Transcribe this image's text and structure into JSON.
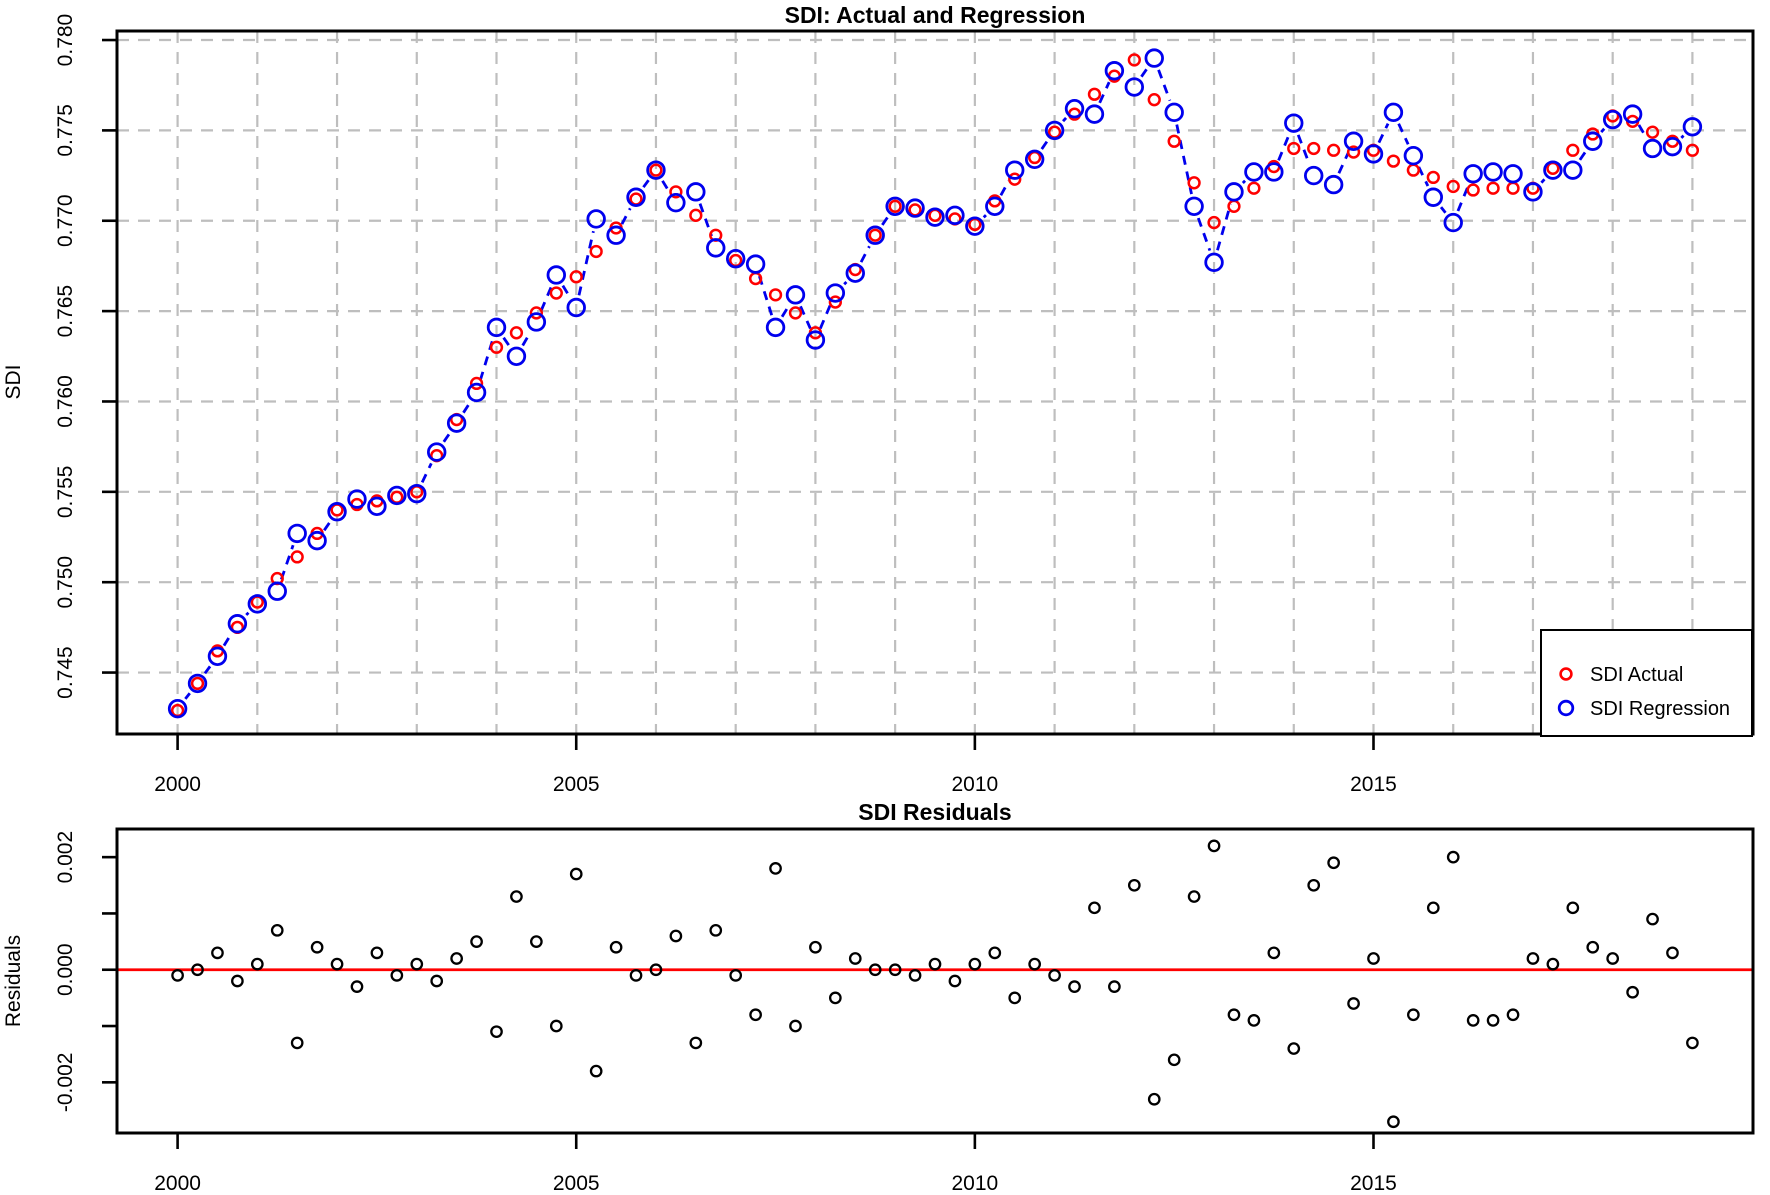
{
  "colors": {
    "actual": "#FF0000",
    "regression": "#0000EE",
    "residual_points": "#000000",
    "zero_line": "#FF0000",
    "grid": "#BEBEBE",
    "frame": "#000000",
    "background": "#FFFFFF"
  },
  "top_chart": {
    "title": "SDI: Actual and Regression",
    "ylabel": "SDI",
    "legend": {
      "items": [
        {
          "label": "SDI Actual",
          "color": "#FF0000"
        },
        {
          "label": "SDI Regression",
          "color": "#0000EE"
        }
      ]
    }
  },
  "bottom_chart": {
    "title": "SDI Residuals",
    "ylabel": "Residuals"
  },
  "chart_data": [
    {
      "type": "line",
      "title": "SDI: Actual and Regression",
      "xlabel": "",
      "ylabel": "SDI",
      "xlim": [
        1999.24,
        2019.76
      ],
      "ylim": [
        0.7416,
        0.7805
      ],
      "x_ticks": [
        2000,
        2005,
        2010,
        2015
      ],
      "x_tick_labels": [
        "2000",
        "2005",
        "2010",
        "2015"
      ],
      "y_ticks": [
        0.745,
        0.75,
        0.755,
        0.76,
        0.765,
        0.77,
        0.775,
        0.78
      ],
      "y_tick_labels": [
        "0.745",
        "0.750",
        "0.755",
        "0.760",
        "0.765",
        "0.770",
        "0.775",
        "0.780"
      ],
      "grid": true,
      "grid_x_years": [
        2000,
        2001,
        2002,
        2003,
        2004,
        2005,
        2006,
        2007,
        2008,
        2009,
        2010,
        2011,
        2012,
        2013,
        2014,
        2015,
        2016,
        2017,
        2018,
        2019
      ],
      "legend_position": "bottom-right",
      "x": [
        2000.0,
        2000.25,
        2000.5,
        2000.75,
        2001.0,
        2001.25,
        2001.5,
        2001.75,
        2002.0,
        2002.25,
        2002.5,
        2002.75,
        2003.0,
        2003.25,
        2003.5,
        2003.75,
        2004.0,
        2004.25,
        2004.5,
        2004.75,
        2005.0,
        2005.25,
        2005.5,
        2005.75,
        2006.0,
        2006.25,
        2006.5,
        2006.75,
        2007.0,
        2007.25,
        2007.5,
        2007.75,
        2008.0,
        2008.25,
        2008.5,
        2008.75,
        2009.0,
        2009.25,
        2009.5,
        2009.75,
        2010.0,
        2010.25,
        2010.5,
        2010.75,
        2011.0,
        2011.25,
        2011.5,
        2011.75,
        2012.0,
        2012.25,
        2012.5,
        2012.75,
        2013.0,
        2013.25,
        2013.5,
        2013.75,
        2014.0,
        2014.25,
        2014.5,
        2014.75,
        2015.0,
        2015.25,
        2015.5,
        2015.75,
        2016.0,
        2016.25,
        2016.5,
        2016.75,
        2017.0,
        2017.25,
        2017.5,
        2017.75,
        2018.0,
        2018.25,
        2018.5,
        2018.75,
        2019.0
      ],
      "series": [
        {
          "name": "SDI Actual",
          "marker": "open-circle",
          "line": "none",
          "values": [
            0.7429,
            0.7444,
            0.7462,
            0.7475,
            0.7489,
            0.7502,
            0.7514,
            0.7527,
            0.754,
            0.7543,
            0.7545,
            0.7547,
            0.755,
            0.757,
            0.759,
            0.761,
            0.763,
            0.7638,
            0.7649,
            0.766,
            0.7669,
            0.7683,
            0.7696,
            0.7712,
            0.7728,
            0.7716,
            0.7703,
            0.7692,
            0.7678,
            0.7668,
            0.7659,
            0.7649,
            0.7638,
            0.7655,
            0.7673,
            0.7692,
            0.7708,
            0.7706,
            0.7703,
            0.7701,
            0.7698,
            0.7711,
            0.7723,
            0.7735,
            0.7749,
            0.7759,
            0.777,
            0.778,
            0.7789,
            0.7767,
            0.7744,
            0.7721,
            0.7699,
            0.7708,
            0.7718,
            0.773,
            0.774,
            0.774,
            0.7739,
            0.7738,
            0.7739,
            0.7733,
            0.7728,
            0.7724,
            0.7719,
            0.7717,
            0.7718,
            0.7718,
            0.7718,
            0.7729,
            0.7739,
            0.7748,
            0.7758,
            0.7755,
            0.7749,
            0.7744,
            0.7739
          ]
        },
        {
          "name": "SDI Regression",
          "marker": "open-circle",
          "line": "dashed",
          "values": [
            0.743,
            0.7444,
            0.7459,
            0.7477,
            0.7488,
            0.7495,
            0.7527,
            0.7523,
            0.7539,
            0.7546,
            0.7542,
            0.7548,
            0.7549,
            0.7572,
            0.7588,
            0.7605,
            0.7641,
            0.7625,
            0.7644,
            0.767,
            0.7652,
            0.7701,
            0.7692,
            0.7713,
            0.7728,
            0.771,
            0.7716,
            0.7685,
            0.7679,
            0.7676,
            0.7641,
            0.7659,
            0.7634,
            0.766,
            0.7671,
            0.7692,
            0.7708,
            0.7707,
            0.7702,
            0.7703,
            0.7697,
            0.7708,
            0.7728,
            0.7734,
            0.775,
            0.7762,
            0.7759,
            0.7783,
            0.7774,
            0.779,
            0.776,
            0.7708,
            0.7677,
            0.7716,
            0.7727,
            0.7727,
            0.7754,
            0.7725,
            0.772,
            0.7744,
            0.7737,
            0.776,
            0.7736,
            0.7713,
            0.7699,
            0.7726,
            0.7727,
            0.7726,
            0.7716,
            0.7728,
            0.7728,
            0.7744,
            0.7756,
            0.7759,
            0.774,
            0.7741,
            0.7752
          ]
        }
      ]
    },
    {
      "type": "scatter",
      "title": "SDI Residuals",
      "xlabel": "",
      "ylabel": "Residuals",
      "xlim": [
        1999.24,
        2019.76
      ],
      "ylim": [
        -0.0029,
        0.0025
      ],
      "x_ticks": [
        2000,
        2005,
        2010,
        2015
      ],
      "x_tick_labels": [
        "2000",
        "2005",
        "2010",
        "2015"
      ],
      "y_ticks": [
        -0.002,
        -0.001,
        0.0,
        0.001,
        0.002
      ],
      "y_tick_labels": [
        "-0.002",
        "",
        "0.000",
        "",
        "0.002"
      ],
      "grid": false,
      "zero_line": 0,
      "x": [
        2000.0,
        2000.25,
        2000.5,
        2000.75,
        2001.0,
        2001.25,
        2001.5,
        2001.75,
        2002.0,
        2002.25,
        2002.5,
        2002.75,
        2003.0,
        2003.25,
        2003.5,
        2003.75,
        2004.0,
        2004.25,
        2004.5,
        2004.75,
        2005.0,
        2005.25,
        2005.5,
        2005.75,
        2006.0,
        2006.25,
        2006.5,
        2006.75,
        2007.0,
        2007.25,
        2007.5,
        2007.75,
        2008.0,
        2008.25,
        2008.5,
        2008.75,
        2009.0,
        2009.25,
        2009.5,
        2009.75,
        2010.0,
        2010.25,
        2010.5,
        2010.75,
        2011.0,
        2011.25,
        2011.5,
        2011.75,
        2012.0,
        2012.25,
        2012.5,
        2012.75,
        2013.0,
        2013.25,
        2013.5,
        2013.75,
        2014.0,
        2014.25,
        2014.5,
        2014.75,
        2015.0,
        2015.25,
        2015.5,
        2015.75,
        2016.0,
        2016.25,
        2016.5,
        2016.75,
        2017.0,
        2017.25,
        2017.5,
        2017.75,
        2018.0,
        2018.25,
        2018.5,
        2018.75,
        2019.0
      ],
      "series": [
        {
          "name": "Residuals",
          "marker": "open-circle",
          "line": "none",
          "values": [
            -0.0001,
            0.0,
            0.0003,
            -0.0002,
            0.0001,
            0.0007,
            -0.0013,
            0.0004,
            0.0001,
            -0.0003,
            0.0003,
            -0.0001,
            0.0001,
            -0.0002,
            0.0002,
            0.0005,
            -0.0011,
            0.0013,
            0.0005,
            -0.001,
            0.0017,
            -0.0018,
            0.0004,
            -0.0001,
            0.0,
            0.0006,
            -0.0013,
            0.0007,
            -0.0001,
            -0.0008,
            0.0018,
            -0.001,
            0.0004,
            -0.0005,
            0.0002,
            0.0,
            0.0,
            -0.0001,
            0.0001,
            -0.0002,
            0.0001,
            0.0003,
            -0.0005,
            0.0001,
            -0.0001,
            -0.0003,
            0.0011,
            -0.0003,
            0.0015,
            -0.0023,
            -0.0016,
            0.0013,
            0.0022,
            -0.0008,
            -0.0009,
            0.0003,
            -0.0014,
            0.0015,
            0.0019,
            -0.0006,
            0.0002,
            -0.0027,
            -0.0008,
            0.0011,
            0.002,
            -0.0009,
            -0.0009,
            -0.0008,
            0.0002,
            0.0001,
            0.0011,
            0.0004,
            0.0002,
            -0.0004,
            0.0009,
            0.0003,
            -0.0013
          ]
        }
      ]
    }
  ]
}
